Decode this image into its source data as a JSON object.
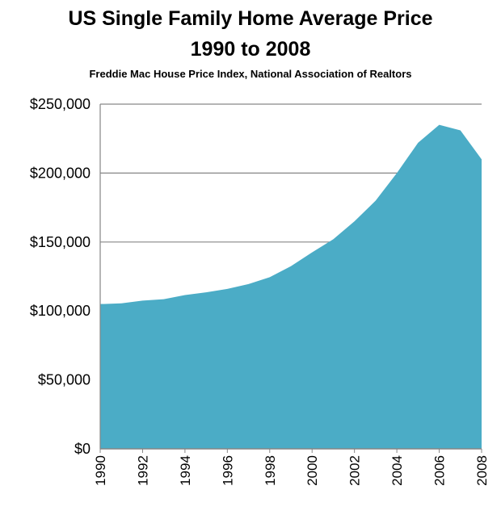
{
  "chart_data": {
    "type": "area",
    "title": "US Single Family Home Average Price",
    "title_line2": "1990 to 2008",
    "subtitle": "Freddie Mac House Price Index, National Association of Realtors",
    "xlabel": "",
    "ylabel": "",
    "x": [
      1990,
      1991,
      1992,
      1993,
      1994,
      1995,
      1996,
      1997,
      1998,
      1999,
      2000,
      2001,
      2002,
      2003,
      2004,
      2005,
      2006,
      2007,
      2008
    ],
    "x_tick_labels": [
      "1990",
      "1992",
      "1994",
      "1996",
      "1998",
      "2000",
      "2002",
      "2004",
      "2006",
      "2008"
    ],
    "series": [
      {
        "values": [
          105000,
          105500,
          107500,
          108500,
          111500,
          113500,
          116000,
          119500,
          124500,
          132500,
          142500,
          152000,
          165000,
          180000,
          200000,
          222000,
          235000,
          231000,
          210000
        ]
      }
    ],
    "ylim": [
      0,
      250000
    ],
    "y_ticks": [
      0,
      50000,
      100000,
      150000,
      200000,
      250000
    ],
    "y_tick_labels": [
      "$0",
      "$50,000",
      "$100,000",
      "$150,000",
      "$200,000",
      "$250,000"
    ],
    "grid": true,
    "legend": "none",
    "fill_color": "#4BACC6",
    "grid_color": "#868686"
  }
}
